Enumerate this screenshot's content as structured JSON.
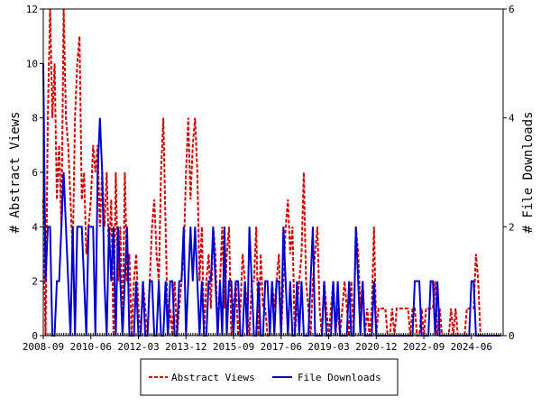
{
  "chart_data": {
    "type": "line",
    "x_ticks": [
      "2008-09",
      "2010-06",
      "2012-03",
      "2013-12",
      "2015-09",
      "2017-06",
      "2019-03",
      "2020-12",
      "2022-09",
      "2024-06"
    ],
    "ylabel_left": "# Abstract Views",
    "ylabel_right": "# File Downloads",
    "ylim_left": [
      0,
      12
    ],
    "ylim_right": [
      0,
      6
    ],
    "yticks_left": [
      0,
      2,
      4,
      6,
      8,
      10,
      12
    ],
    "yticks_right": [
      0,
      2,
      4,
      6
    ],
    "x_months": 203,
    "legend": "bottom",
    "grid": false,
    "series": [
      {
        "name": "Abstract Views",
        "axis": "left",
        "color": "#cc0000",
        "dash": "dashed",
        "values": [
          5,
          0,
          8,
          12,
          8,
          10,
          5,
          7,
          4,
          12,
          8,
          7,
          5,
          3,
          8,
          10,
          11,
          5,
          6,
          3,
          4,
          5,
          7,
          6,
          7,
          4,
          6,
          4,
          6,
          3,
          5,
          0,
          6,
          2,
          4,
          0,
          6,
          2,
          3,
          0,
          2,
          3,
          1,
          0,
          2,
          1,
          0,
          2,
          4,
          5,
          3,
          2,
          6,
          8,
          4,
          0,
          1,
          0,
          2,
          0,
          1,
          2,
          3,
          6,
          8,
          5,
          7,
          8,
          6,
          2,
          4,
          0,
          2,
          3,
          1,
          4,
          3,
          0,
          2,
          4,
          1,
          3,
          4,
          0,
          1,
          2,
          0,
          1,
          3,
          2,
          1,
          0,
          2,
          2,
          4,
          0,
          3,
          1,
          1,
          0,
          0,
          2,
          1,
          2,
          3,
          0,
          2,
          4,
          5,
          3,
          4,
          0,
          1,
          2,
          3,
          6,
          2,
          1,
          0,
          2,
          3,
          4,
          1,
          0,
          2,
          1,
          0,
          1,
          2,
          0,
          1,
          0,
          1,
          2,
          1,
          0,
          2,
          0,
          4,
          3,
          1,
          2,
          0,
          1,
          0,
          1,
          4,
          0,
          1,
          1,
          1,
          1,
          0,
          0,
          1,
          0,
          1,
          1,
          1,
          1,
          1,
          1,
          0,
          1,
          1,
          0,
          0,
          1,
          0,
          1,
          1,
          1,
          1,
          2,
          0,
          1,
          0,
          0,
          0,
          0,
          1,
          0,
          1,
          0,
          0,
          0,
          0,
          1,
          1,
          1,
          1,
          3,
          2,
          0,
          0,
          0,
          0,
          0,
          0,
          0,
          0,
          0,
          0
        ]
      },
      {
        "name": "File Downloads",
        "axis": "right",
        "color": "#0000cc",
        "dash": "solid",
        "values": [
          5,
          1,
          2,
          2,
          0,
          0,
          1,
          1,
          2,
          3,
          2,
          1,
          0,
          2,
          0,
          2,
          2,
          2,
          1,
          0,
          2,
          2,
          2,
          0,
          3,
          4,
          3,
          1,
          0,
          2,
          1,
          2,
          0,
          2,
          1,
          0,
          1,
          2,
          0,
          0,
          0,
          1,
          0,
          0,
          1,
          0,
          0,
          1,
          1,
          0,
          0,
          1,
          0,
          0,
          1,
          0,
          1,
          1,
          0,
          0,
          1,
          1,
          2,
          0,
          1,
          2,
          1,
          2,
          1,
          0,
          1,
          0,
          0,
          1,
          1,
          2,
          1,
          0,
          1,
          0,
          2,
          0,
          1,
          1,
          0,
          1,
          1,
          0,
          0,
          1,
          0,
          2,
          1,
          0,
          0,
          1,
          0,
          0,
          1,
          1,
          0,
          1,
          0,
          1,
          1,
          0,
          2,
          1,
          0,
          1,
          0,
          0,
          1,
          0,
          1,
          0,
          0,
          0,
          1,
          2,
          0,
          0,
          0,
          0,
          1,
          0,
          0,
          0,
          1,
          0,
          1,
          0,
          0,
          0,
          0,
          1,
          0,
          0,
          2,
          1,
          0,
          1,
          0,
          0,
          0,
          0,
          1,
          0,
          0,
          0,
          0,
          0,
          0,
          0,
          0,
          0,
          0,
          0,
          0,
          0,
          0,
          0,
          0,
          0,
          1,
          1,
          1,
          0,
          0,
          0,
          0,
          1,
          1,
          0,
          1,
          0,
          0,
          0,
          0,
          0,
          0,
          0,
          0,
          0,
          0,
          0,
          0,
          0,
          0,
          1,
          1,
          0,
          0,
          0,
          0,
          0,
          0,
          0,
          0,
          0,
          0,
          0,
          0
        ]
      }
    ]
  }
}
